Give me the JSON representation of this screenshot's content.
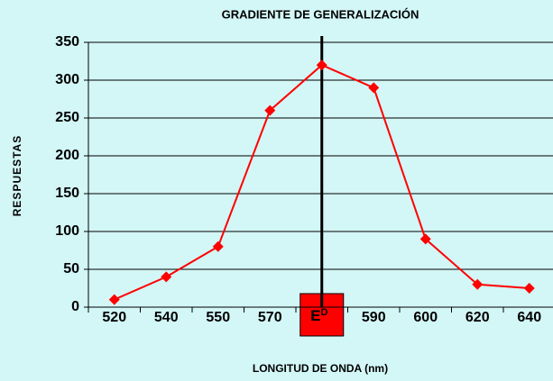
{
  "chart_data": {
    "type": "line",
    "title": "GRADIENTE DE GENERALIZACIÓN",
    "x_label": "LONGITUD DE ONDA (nm)",
    "y_label": "RESPUESTAS",
    "categories": [
      "520",
      "540",
      "550",
      "570",
      "E",
      "590",
      "600",
      "620",
      "640"
    ],
    "category_superscripts": [
      null,
      null,
      null,
      null,
      "D",
      null,
      null,
      null,
      null
    ],
    "series": [
      {
        "name": "RESPUESTAS",
        "color": "#ff0000",
        "values": [
          10,
          40,
          80,
          260,
          320,
          290,
          90,
          30,
          25
        ]
      }
    ],
    "ylim": [
      0,
      350
    ],
    "yticks": [
      0,
      50,
      100,
      150,
      200,
      250,
      300,
      350
    ],
    "grid": true
  }
}
